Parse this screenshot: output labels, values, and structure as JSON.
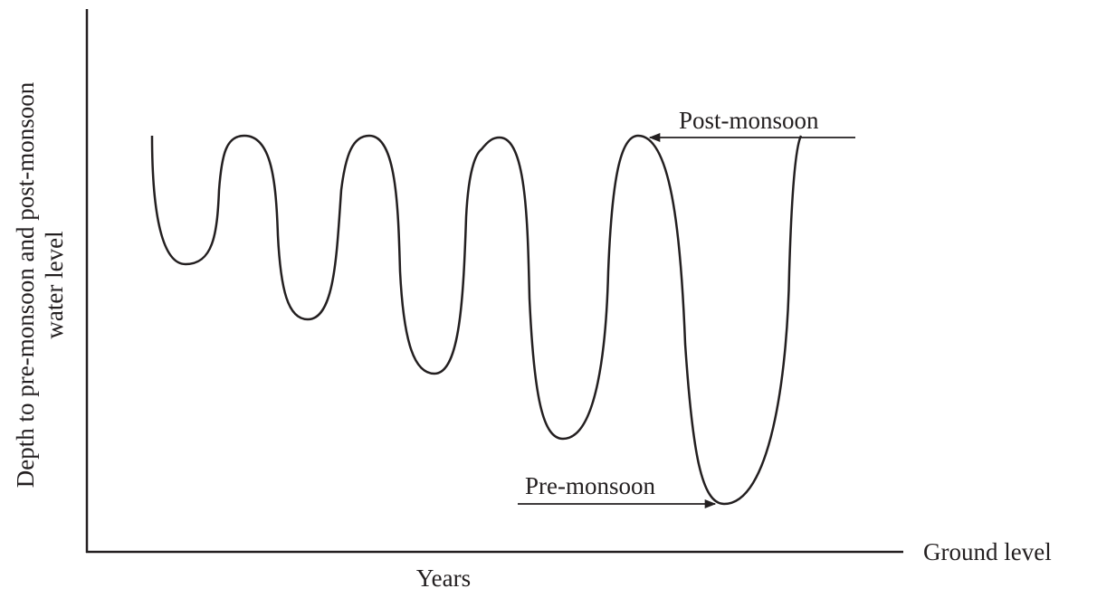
{
  "y_axis_label": {
    "line1": "Depth to pre-monsoon and post-monsoon",
    "line2": "water level"
  },
  "x_axis_label": "Years",
  "baseline_label": "Ground level",
  "annotations": {
    "post": "Post-monsoon",
    "pre": "Pre-monsoon"
  }
}
